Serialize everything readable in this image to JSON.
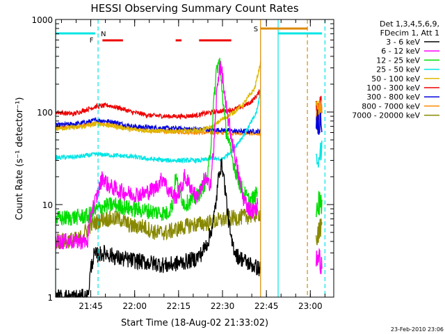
{
  "chart_data": {
    "type": "line",
    "title": "HESSI Observing Summary Count Rates",
    "xlabel": "Start Time (18-Aug-02 21:33:02)",
    "ylabel": "Count Rate (s⁻¹ detector⁻¹)",
    "yscale": "log",
    "ylim": [
      1,
      1000
    ],
    "xlim_minutes": [
      0,
      95
    ],
    "x_ticks": [
      {
        "label": "21:45",
        "min": 12
      },
      {
        "label": "22:00",
        "min": 27
      },
      {
        "label": "22:15",
        "min": 42
      },
      {
        "label": "22:30",
        "min": 57
      },
      {
        "label": "22:45",
        "min": 72
      },
      {
        "label": "23:00",
        "min": 87
      }
    ],
    "y_ticks": [
      {
        "label": "1",
        "value": 1
      },
      {
        "label": "10",
        "value": 10
      },
      {
        "label": "100",
        "value": 100
      },
      {
        "label": "1000",
        "value": 1000
      }
    ],
    "legend_title": [
      "Det 1,3,4,5,6,9,",
      "FDecim 1, Att 1"
    ],
    "legend_placement": "right",
    "series": [
      {
        "name": "3 - 6 keV",
        "color": "#000000",
        "points": [
          [
            0,
            1
          ],
          [
            11,
            1
          ],
          [
            12,
            2
          ],
          [
            13,
            2.8
          ],
          [
            17,
            3
          ],
          [
            22,
            2.6
          ],
          [
            30,
            2.4
          ],
          [
            38,
            2.2
          ],
          [
            44,
            2.4
          ],
          [
            48,
            2.6
          ],
          [
            50,
            3
          ],
          [
            52,
            4
          ],
          [
            53,
            5
          ],
          [
            54,
            7
          ],
          [
            55,
            12
          ],
          [
            56,
            25
          ],
          [
            57,
            26
          ],
          [
            58,
            14
          ],
          [
            59,
            7
          ],
          [
            60,
            4
          ],
          [
            62,
            2.8
          ],
          [
            66,
            2.3
          ],
          [
            70,
            2
          ]
        ]
      },
      {
        "name": "6 - 12 keV",
        "color": "#ff00ff",
        "points": [
          [
            0,
            4
          ],
          [
            11,
            4
          ],
          [
            12,
            8
          ],
          [
            14,
            12
          ],
          [
            16,
            20
          ],
          [
            18,
            16
          ],
          [
            22,
            14
          ],
          [
            26,
            13
          ],
          [
            30,
            13
          ],
          [
            34,
            15
          ],
          [
            37,
            20
          ],
          [
            38,
            15
          ],
          [
            41,
            12
          ],
          [
            43,
            15
          ],
          [
            44,
            20
          ],
          [
            46,
            16
          ],
          [
            48,
            12
          ],
          [
            50,
            15
          ],
          [
            51,
            20
          ],
          [
            52,
            16
          ],
          [
            53,
            18
          ],
          [
            54,
            40
          ],
          [
            55,
            150
          ],
          [
            56,
            320
          ],
          [
            57,
            250
          ],
          [
            58,
            120
          ],
          [
            60,
            55
          ],
          [
            62,
            25
          ],
          [
            64,
            12
          ],
          [
            66,
            9
          ],
          [
            68,
            8.5
          ],
          [
            69,
            10
          ]
        ]
      },
      {
        "name": "12 - 25 keV",
        "color": "#00dd00",
        "points": [
          [
            0,
            7
          ],
          [
            11,
            7.5
          ],
          [
            12,
            8
          ],
          [
            16,
            9.5
          ],
          [
            20,
            10
          ],
          [
            26,
            9
          ],
          [
            32,
            8.5
          ],
          [
            38,
            8
          ],
          [
            40,
            10
          ],
          [
            41,
            20
          ],
          [
            42,
            15
          ],
          [
            44,
            10
          ],
          [
            46,
            11
          ],
          [
            48,
            12
          ],
          [
            50,
            15
          ],
          [
            52,
            20
          ],
          [
            53,
            45
          ],
          [
            54,
            120
          ],
          [
            55,
            300
          ],
          [
            56,
            350
          ],
          [
            57,
            160
          ],
          [
            58,
            70
          ],
          [
            60,
            35
          ],
          [
            62,
            20
          ],
          [
            64,
            14
          ],
          [
            66,
            11
          ],
          [
            68,
            12
          ],
          [
            69,
            14
          ]
        ]
      },
      {
        "name": "25 - 50 keV",
        "color": "#00e5e5",
        "points": [
          [
            0,
            32
          ],
          [
            8,
            33
          ],
          [
            14,
            35
          ],
          [
            20,
            34
          ],
          [
            26,
            33
          ],
          [
            32,
            31
          ],
          [
            38,
            30
          ],
          [
            44,
            30
          ],
          [
            50,
            30
          ],
          [
            54,
            32
          ],
          [
            56,
            30
          ],
          [
            58,
            33
          ],
          [
            60,
            38
          ],
          [
            62,
            45
          ],
          [
            64,
            55
          ],
          [
            66,
            70
          ],
          [
            68,
            90
          ],
          [
            69,
            110
          ],
          [
            70,
            180
          ]
        ]
      },
      {
        "name": "50 - 100 keV",
        "color": "#ddb800",
        "points": [
          [
            0,
            66
          ],
          [
            10,
            70
          ],
          [
            14,
            75
          ],
          [
            20,
            70
          ],
          [
            26,
            65
          ],
          [
            32,
            63
          ],
          [
            38,
            62
          ],
          [
            44,
            62
          ],
          [
            50,
            64
          ],
          [
            54,
            70
          ],
          [
            56,
            80
          ],
          [
            60,
            95
          ],
          [
            64,
            120
          ],
          [
            68,
            180
          ],
          [
            70,
            340
          ]
        ]
      },
      {
        "name": "100 - 300 keV",
        "color": "#ee0000",
        "points": [
          [
            0,
            100
          ],
          [
            6,
            95
          ],
          [
            10,
            105
          ],
          [
            14,
            115
          ],
          [
            18,
            118
          ],
          [
            22,
            110
          ],
          [
            26,
            100
          ],
          [
            32,
            92
          ],
          [
            38,
            90
          ],
          [
            44,
            90
          ],
          [
            48,
            92
          ],
          [
            52,
            98
          ],
          [
            56,
            102
          ],
          [
            60,
            105
          ],
          [
            64,
            115
          ],
          [
            67,
            130
          ],
          [
            70,
            170
          ]
        ]
      },
      {
        "name": "300 - 800 keV",
        "color": "#0000dd",
        "points": [
          [
            0,
            72
          ],
          [
            8,
            75
          ],
          [
            14,
            82
          ],
          [
            20,
            78
          ],
          [
            26,
            70
          ],
          [
            32,
            68
          ],
          [
            38,
            67
          ],
          [
            44,
            66
          ],
          [
            50,
            65
          ],
          [
            56,
            64
          ],
          [
            62,
            62
          ],
          [
            66,
            62
          ],
          [
            70,
            62
          ]
        ]
      },
      {
        "name": "800 - 7000 keV",
        "color": "#ff8800",
        "points": [
          [
            0,
            68
          ],
          [
            8,
            70
          ],
          [
            14,
            76
          ],
          [
            20,
            72
          ],
          [
            26,
            66
          ],
          [
            32,
            63
          ],
          [
            38,
            62
          ],
          [
            44,
            61
          ],
          [
            50,
            60
          ],
          [
            56,
            60
          ],
          [
            62,
            59
          ],
          [
            66,
            59
          ],
          [
            70,
            58
          ]
        ]
      },
      {
        "name": "7000 - 20000 keV",
        "color": "#888800",
        "points": [
          [
            0,
            4
          ],
          [
            8,
            4.2
          ],
          [
            12,
            6
          ],
          [
            16,
            7
          ],
          [
            22,
            7
          ],
          [
            26,
            5.8
          ],
          [
            30,
            5.8
          ],
          [
            34,
            5
          ],
          [
            38,
            5
          ],
          [
            42,
            5.5
          ],
          [
            46,
            6
          ],
          [
            50,
            6.2
          ],
          [
            54,
            6.5
          ],
          [
            58,
            7
          ],
          [
            62,
            7.2
          ],
          [
            66,
            7.5
          ],
          [
            70,
            8
          ]
        ]
      }
    ],
    "late_data": {
      "x_min": [
        89,
        91
      ],
      "colors": [
        "#ee0000",
        "#ddb800",
        "#ff8800",
        "#0000dd",
        "#00e5e5",
        "#00dd00",
        "#ff00ff",
        "#888800"
      ],
      "values": [
        110,
        105,
        90,
        80,
        35,
        10,
        2.5,
        5
      ]
    },
    "annotations": {
      "top_bar_1": {
        "min_from": 0,
        "min_to": 13.5,
        "color": "#00e5e5"
      },
      "top_bar_2": {
        "min_from": 76,
        "min_to": 91,
        "color": "#00e5e5"
      },
      "s_bar": {
        "label": "S",
        "min_from": 70,
        "min_to": 86,
        "color": "#dd8800"
      },
      "n_marker": {
        "label": "N",
        "min": 14.5,
        "color": "#00e5e5"
      },
      "f_marker": {
        "label": "F",
        "min": 13,
        "color": "#ee0000"
      },
      "red_bars": [
        [
          16,
          23
        ],
        [
          41,
          43
        ],
        [
          49,
          60
        ]
      ],
      "vlines": [
        {
          "min": 0,
          "color": "#00e5e5",
          "style": "solid"
        },
        {
          "min": 14.5,
          "color": "#00e5e5",
          "style": "dashed"
        },
        {
          "min": 70,
          "color": "#dd8800",
          "style": "solid"
        },
        {
          "min": 76,
          "color": "#00e5e5",
          "style": "solid"
        },
        {
          "min": 86,
          "color": "#dd8800",
          "style": "dashed"
        },
        {
          "min": 92,
          "color": "#00e5e5",
          "style": "dashed"
        }
      ]
    },
    "footer_date": "23-Feb-2010 23:06"
  }
}
